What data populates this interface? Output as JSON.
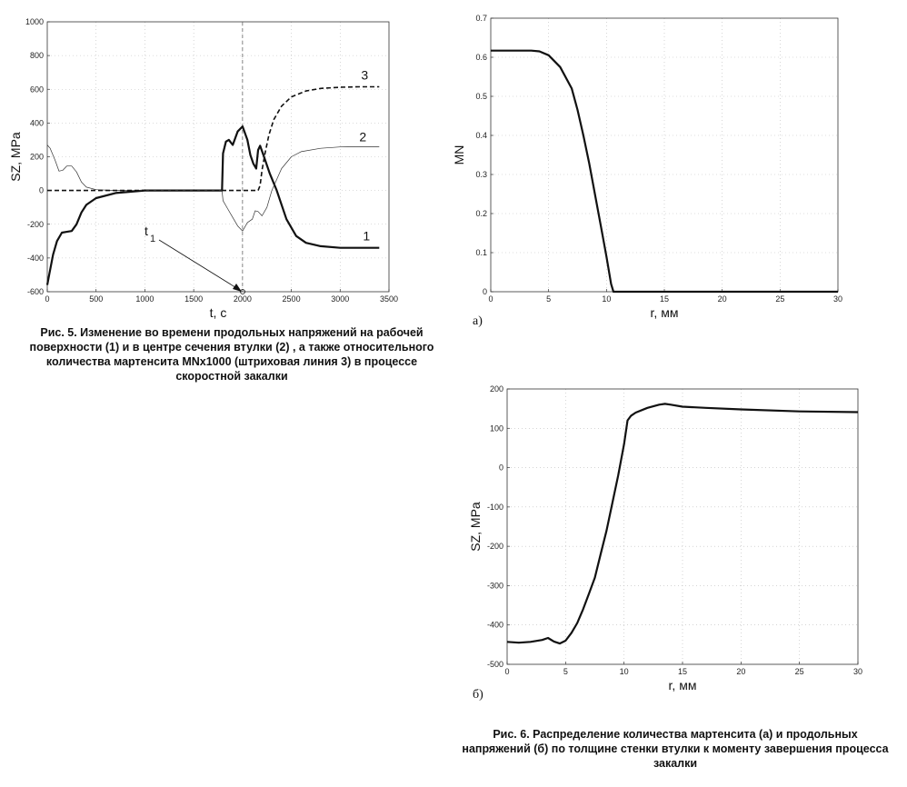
{
  "figure5": {
    "caption": "Рис. 5. Изменение во времени продольных напряжений на рабочей поверхности (1) и в центре сечения втулки (2) , а также относительного количества мартенсита MNx1000 (штриховая линия 3) в процессе скоростной закалки",
    "t1_label": "t",
    "t1_sub": "1"
  },
  "figure6": {
    "caption": "Рис. 6. Распределение количества мартенсита (а) и продольных напряжений (б) по толщине стенки втулки к моменту завершения процесса закалки",
    "panel_a_label": "а)",
    "panel_b_label": "б)"
  },
  "chart_data": [
    {
      "type": "line",
      "xlabel": "t, c",
      "ylabel": "SZ, MPa",
      "xlim": [
        0,
        3500
      ],
      "ylim": [
        -600,
        1000
      ],
      "xticks": [
        0,
        500,
        1000,
        1500,
        2000,
        2500,
        3000,
        3500
      ],
      "yticks": [
        -600,
        -400,
        -200,
        0,
        200,
        400,
        600,
        800,
        1000
      ],
      "grid": true,
      "vertical_marker_x": 2000,
      "series": [
        {
          "name": "1",
          "style": "thick",
          "color": "#111111",
          "x": [
            0,
            20,
            60,
            100,
            150,
            200,
            250,
            300,
            350,
            400,
            500,
            700,
            1000,
            1500,
            1790,
            1800,
            1830,
            1860,
            1900,
            1950,
            2000,
            2050,
            2080,
            2110,
            2140,
            2160,
            2180,
            2220,
            2280,
            2350,
            2450,
            2550,
            2650,
            2800,
            3000,
            3200,
            3400
          ],
          "y": [
            -560,
            -500,
            -380,
            -300,
            -250,
            -245,
            -240,
            -200,
            -130,
            -85,
            -45,
            -15,
            0,
            0,
            0,
            220,
            290,
            300,
            270,
            350,
            380,
            300,
            210,
            160,
            130,
            240,
            265,
            200,
            100,
            0,
            -170,
            -270,
            -310,
            -330,
            -340,
            -340,
            -340
          ]
        },
        {
          "name": "2",
          "style": "thin",
          "color": "#333333",
          "x": [
            0,
            30,
            80,
            120,
            160,
            200,
            250,
            300,
            350,
            400,
            500,
            700,
            1000,
            1500,
            1790,
            1800,
            1850,
            1900,
            1950,
            2000,
            2050,
            2100,
            2130,
            2160,
            2200,
            2250,
            2300,
            2400,
            2500,
            2600,
            2800,
            3000,
            3400
          ],
          "y": [
            270,
            250,
            180,
            115,
            120,
            145,
            145,
            110,
            50,
            20,
            5,
            0,
            0,
            0,
            0,
            -60,
            -110,
            -160,
            -210,
            -240,
            -190,
            -170,
            -120,
            -125,
            -150,
            -100,
            0,
            130,
            200,
            230,
            250,
            258,
            260
          ]
        },
        {
          "name": "3",
          "style": "dashed",
          "color": "#111111",
          "x": [
            0,
            500,
            1000,
            1500,
            2000,
            2100,
            2160,
            2180,
            2200,
            2230,
            2270,
            2320,
            2400,
            2500,
            2650,
            2800,
            3000,
            3200,
            3400
          ],
          "y": [
            0,
            0,
            0,
            0,
            0,
            0,
            0,
            30,
            120,
            220,
            330,
            420,
            500,
            555,
            590,
            605,
            612,
            615,
            615
          ]
        }
      ]
    },
    {
      "type": "line",
      "xlabel": "r, мм",
      "ylabel": "MN",
      "xlim": [
        0,
        30
      ],
      "ylim": [
        0,
        0.7
      ],
      "xticks": [
        0,
        5,
        10,
        15,
        20,
        25,
        30
      ],
      "yticks": [
        0,
        0.1,
        0.2,
        0.3,
        0.4,
        0.5,
        0.6,
        0.7
      ],
      "grid": true,
      "series": [
        {
          "style": "thick",
          "color": "#111111",
          "x": [
            0,
            2,
            3.5,
            4.2,
            5,
            6,
            7,
            7.5,
            8,
            8.5,
            9,
            9.5,
            10,
            10.4,
            10.6,
            12,
            15,
            20,
            25,
            30
          ],
          "y": [
            0.617,
            0.617,
            0.617,
            0.615,
            0.605,
            0.575,
            0.52,
            0.465,
            0.4,
            0.33,
            0.25,
            0.17,
            0.09,
            0.02,
            0,
            0,
            0,
            0,
            0,
            0
          ]
        }
      ]
    },
    {
      "type": "line",
      "xlabel": "r, мм",
      "ylabel": "SZ, MPa",
      "xlim": [
        0,
        30
      ],
      "ylim": [
        -500,
        200
      ],
      "xticks": [
        0,
        5,
        10,
        15,
        20,
        25,
        30
      ],
      "yticks": [
        -500,
        -400,
        -300,
        -200,
        -100,
        0,
        100,
        200
      ],
      "grid": true,
      "series": [
        {
          "style": "thick",
          "color": "#111111",
          "x": [
            0,
            1,
            2,
            3,
            3.5,
            4,
            4.5,
            5,
            5.5,
            6,
            6.5,
            7,
            7.5,
            8,
            8.5,
            9,
            9.5,
            10,
            10.3,
            10.6,
            11,
            12,
            13,
            13.5,
            14,
            15,
            17,
            20,
            25,
            30
          ],
          "y": [
            -443,
            -445,
            -443,
            -438,
            -433,
            -442,
            -447,
            -440,
            -420,
            -395,
            -360,
            -320,
            -280,
            -220,
            -160,
            -90,
            -20,
            60,
            120,
            132,
            140,
            152,
            160,
            162,
            160,
            155,
            152,
            148,
            143,
            141
          ]
        }
      ]
    }
  ]
}
